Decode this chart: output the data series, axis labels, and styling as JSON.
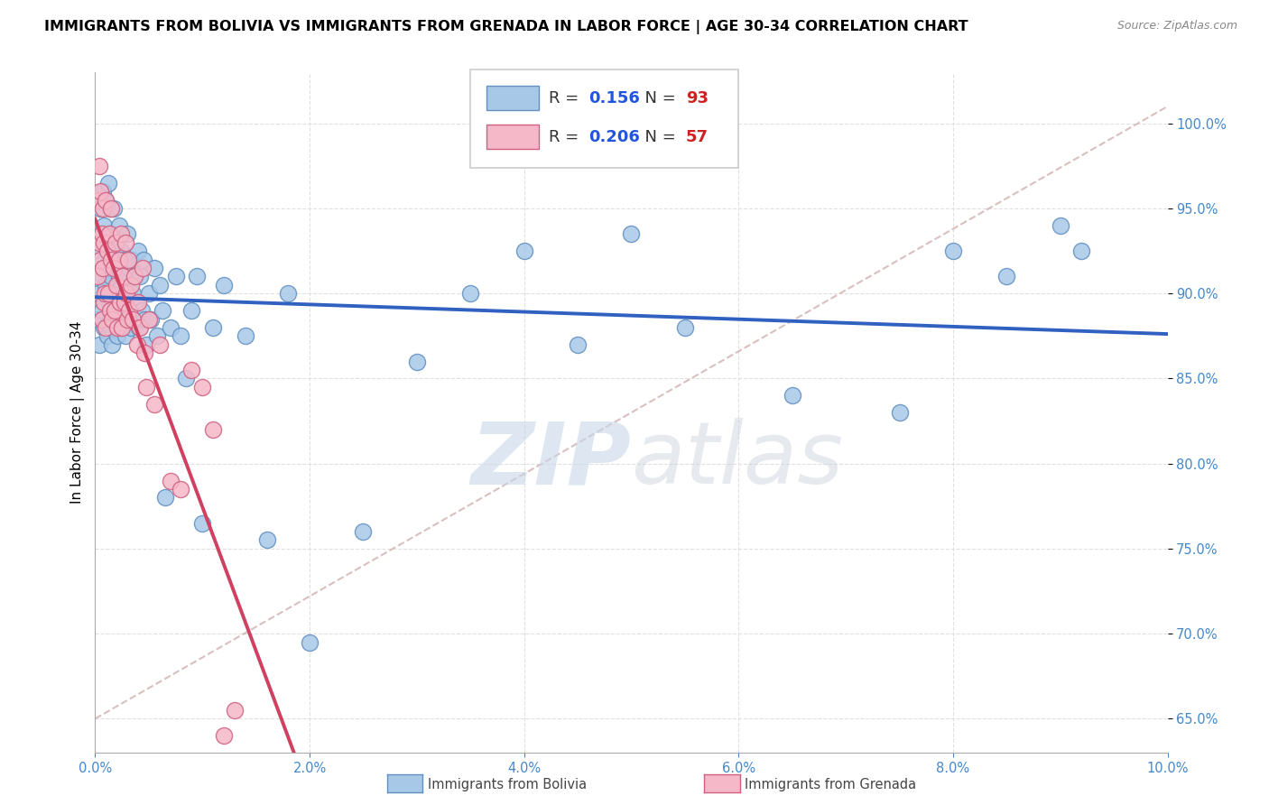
{
  "title": "IMMIGRANTS FROM BOLIVIA VS IMMIGRANTS FROM GRENADA IN LABOR FORCE | AGE 30-34 CORRELATION CHART",
  "source": "Source: ZipAtlas.com",
  "ylabel": "In Labor Force | Age 30-34",
  "xlim": [
    0.0,
    10.0
  ],
  "ylim": [
    63.0,
    103.0
  ],
  "xtick_vals": [
    0.0,
    2.0,
    4.0,
    6.0,
    8.0,
    10.0
  ],
  "xtick_labels": [
    "0.0%",
    "2.0%",
    "4.0%",
    "6.0%",
    "8.0%",
    "10.0%"
  ],
  "ytick_vals": [
    65.0,
    70.0,
    75.0,
    80.0,
    85.0,
    90.0,
    95.0,
    100.0
  ],
  "ytick_labels": [
    "65.0%",
    "70.0%",
    "75.0%",
    "80.0%",
    "85.0%",
    "90.0%",
    "95.0%",
    "100.0%"
  ],
  "bolivia_color": "#a8c8e8",
  "grenada_color": "#f5b8c8",
  "bolivia_edge": "#6090c0",
  "grenada_edge": "#d06080",
  "bolivia_R": 0.156,
  "bolivia_N": 93,
  "grenada_R": 0.206,
  "grenada_N": 57,
  "watermark_zip": "ZIP",
  "watermark_atlas": "atlas",
  "background_color": "#ffffff",
  "grid_color": "#e0e0e0",
  "bolivia_line_color": "#3060c0",
  "grenada_line_color": "#d04060",
  "diagonal_color": "#d0b0b0",
  "title_fontsize": 11.5,
  "axis_label_fontsize": 11,
  "tick_fontsize": 10.5,
  "legend_fontsize": 13
}
